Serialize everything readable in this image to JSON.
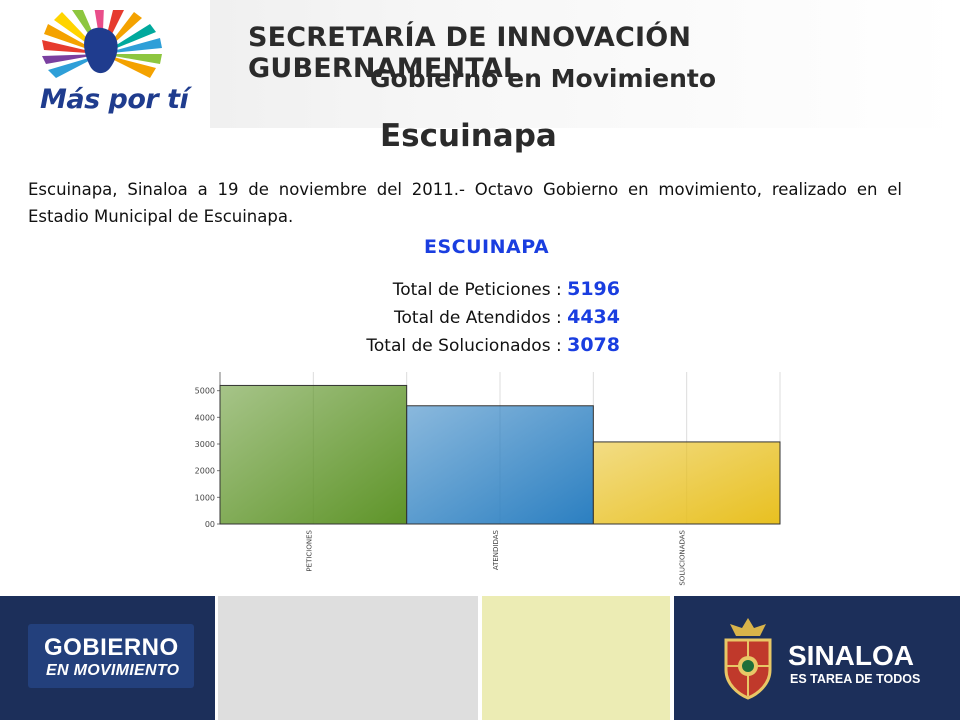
{
  "header": {
    "logo_text": "Más por tí",
    "title": "SECRETARÍA DE INNOVACIÓN GUBERNAMENTAL",
    "subtitle": "Gobierno en Movimiento"
  },
  "page": {
    "title": "Escuinapa",
    "body": "Escuinapa, Sinaloa a 19 de noviembre del 2011.- Octavo Gobierno en movimiento, realizado en el Estadio Municipal de Escuinapa."
  },
  "totals": {
    "title": "ESCUINAPA",
    "rows": [
      {
        "label": "Total de Peticiones :",
        "value": "5196"
      },
      {
        "label": "Total de Atendidos :",
        "value": "4434"
      },
      {
        "label": "Total de Solucionados :",
        "value": "3078"
      }
    ]
  },
  "chart_data": {
    "type": "bar",
    "categories": [
      "PETICIONES",
      "ATENDIDAS",
      "SOLUCIONADAS"
    ],
    "values": [
      5196,
      4434,
      3078
    ],
    "colors": [
      "#5e9428",
      "#2b7fc1",
      "#e8c020"
    ],
    "ylim": [
      0,
      5700
    ],
    "yticks": [
      0,
      1000,
      2000,
      3000,
      4000,
      5000
    ],
    "ytick_labels": [
      "00",
      "1000",
      "2000",
      "3000",
      "4000",
      "5000"
    ],
    "grid": "vertical",
    "xlabel": "",
    "ylabel": ""
  },
  "footer": {
    "left_line1": "GOBIERNO",
    "left_line2": "EN MOVIMIENTO",
    "right_line1": "SINALOA",
    "right_line2": "ES TAREA DE TODOS"
  }
}
